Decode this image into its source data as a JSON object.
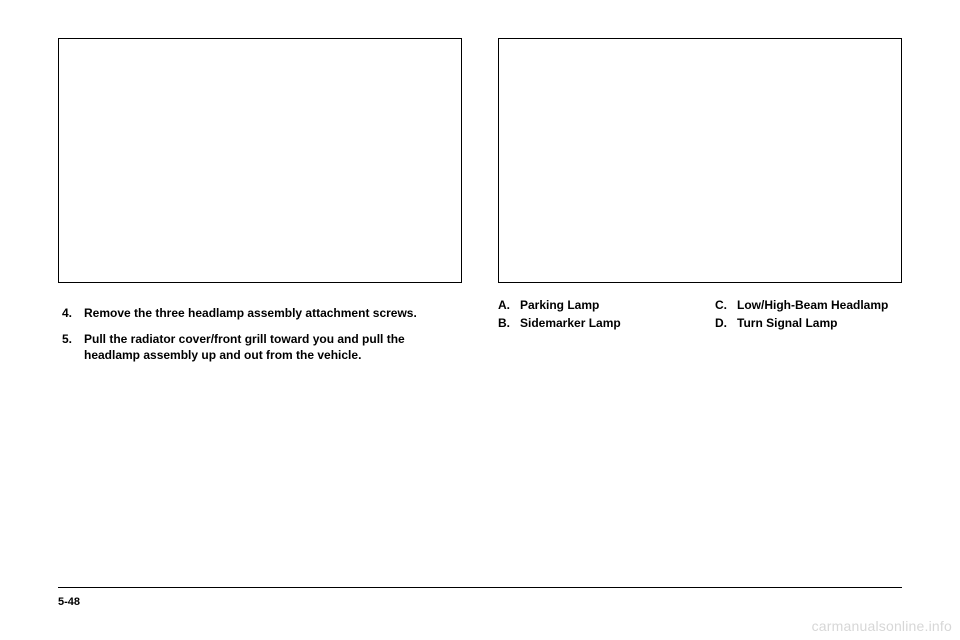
{
  "left": {
    "steps": [
      {
        "num": "4.",
        "text": "Remove the three headlamp assembly attachment screws."
      },
      {
        "num": "5.",
        "text": "Pull the radiator cover/front grill toward you and pull the headlamp assembly up and out from the vehicle."
      }
    ]
  },
  "right": {
    "legend_left": [
      {
        "letter": "A.",
        "text": "Parking Lamp"
      },
      {
        "letter": "B.",
        "text": "Sidemarker Lamp"
      }
    ],
    "legend_right": [
      {
        "letter": "C.",
        "text": "Low/High-Beam Headlamp"
      },
      {
        "letter": "D.",
        "text": "Turn Signal Lamp"
      }
    ]
  },
  "footer": {
    "page": "5-48"
  },
  "watermark": "carmanualsonline.info"
}
